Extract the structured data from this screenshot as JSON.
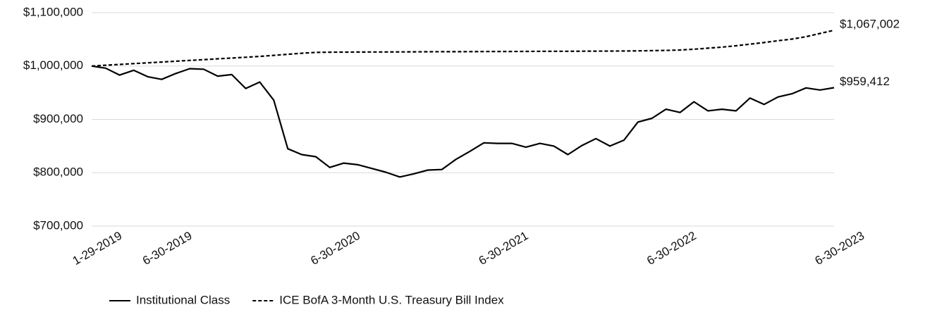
{
  "chart_data": {
    "type": "line",
    "categories": [
      "1-29-2019",
      null,
      null,
      null,
      null,
      "6-30-2019",
      null,
      null,
      null,
      null,
      null,
      null,
      null,
      null,
      null,
      null,
      null,
      "6-30-2020",
      null,
      null,
      null,
      null,
      null,
      null,
      null,
      null,
      null,
      null,
      null,
      "6-30-2021",
      null,
      null,
      null,
      null,
      null,
      null,
      null,
      null,
      null,
      null,
      null,
      "6-30-2022",
      null,
      null,
      null,
      null,
      null,
      null,
      null,
      null,
      null,
      null,
      null,
      "6-30-2023"
    ],
    "series": [
      {
        "name": "Institutional Class",
        "color": "#000000",
        "dash": false,
        "values": [
          1000000,
          996000,
          983000,
          992000,
          980000,
          975000,
          986000,
          995000,
          994000,
          981000,
          984000,
          958000,
          970000,
          936000,
          845000,
          834000,
          830000,
          810000,
          818000,
          815000,
          808000,
          801000,
          792000,
          798000,
          805000,
          806000,
          825000,
          840000,
          856000,
          855000,
          855000,
          848000,
          855000,
          850000,
          834000,
          851000,
          864000,
          850000,
          861000,
          895000,
          902000,
          919000,
          913000,
          933000,
          916000,
          919000,
          916000,
          940000,
          928000,
          942000,
          948000,
          959000,
          955000,
          959412
        ],
        "value_labels": [
          null,
          null,
          null,
          null,
          null,
          null,
          null,
          null,
          null,
          null,
          null,
          null,
          null,
          null,
          null,
          null,
          null,
          null,
          null,
          null,
          null,
          null,
          null,
          null,
          null,
          null,
          null,
          null,
          null,
          null,
          null,
          null,
          null,
          null,
          null,
          null,
          null,
          null,
          null,
          null,
          null,
          null,
          null,
          null,
          null,
          null,
          null,
          null,
          null,
          null,
          null,
          null,
          null,
          "$959,412"
        ]
      },
      {
        "name": "ICE BofA 3-Month U.S. Treasury Bill Index",
        "color": "#000000",
        "dash": true,
        "values": [
          1000000,
          1001500,
          1003000,
          1004500,
          1006000,
          1007500,
          1009000,
          1010500,
          1012000,
          1013500,
          1015000,
          1016500,
          1018000,
          1020000,
          1022000,
          1024000,
          1025500,
          1026000,
          1026100,
          1026200,
          1026300,
          1026400,
          1026500,
          1026600,
          1026700,
          1026800,
          1026900,
          1027000,
          1027100,
          1027200,
          1027300,
          1027400,
          1027500,
          1027600,
          1027700,
          1027800,
          1027900,
          1028000,
          1028200,
          1028500,
          1028800,
          1029300,
          1030000,
          1031500,
          1033500,
          1035500,
          1038000,
          1041000,
          1044000,
          1047500,
          1050500,
          1055000,
          1061000,
          1067002
        ],
        "value_labels": [
          null,
          null,
          null,
          null,
          null,
          null,
          null,
          null,
          null,
          null,
          null,
          null,
          null,
          null,
          null,
          null,
          null,
          null,
          null,
          null,
          null,
          null,
          null,
          null,
          null,
          null,
          null,
          null,
          null,
          null,
          null,
          null,
          null,
          null,
          null,
          null,
          null,
          null,
          null,
          null,
          null,
          null,
          null,
          null,
          null,
          null,
          null,
          null,
          null,
          null,
          null,
          null,
          null,
          "$1,067,002"
        ]
      }
    ],
    "ylim": [
      700000,
      1100000
    ],
    "yticks": [
      {
        "value": 700000,
        "label": "$700,000"
      },
      {
        "value": 800000,
        "label": "$800,000"
      },
      {
        "value": 900000,
        "label": "$900,000"
      },
      {
        "value": 1000000,
        "label": "$1,000,000"
      },
      {
        "value": 1100000,
        "label": "$1,100,000"
      }
    ],
    "grid": true,
    "legend": "bottom"
  }
}
